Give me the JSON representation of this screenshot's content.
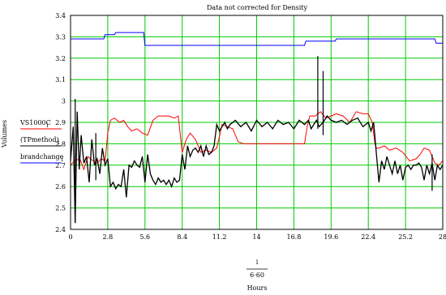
{
  "chart_data": {
    "type": "line",
    "title": "Data not corrected for Density",
    "ylabel": "Volumes",
    "xlabel_numerator": "i",
    "xlabel_denominator": "6·60",
    "xlabel": "Hours",
    "xlim": [
      0,
      28
    ],
    "ylim": [
      2.4,
      3.4
    ],
    "x_ticks": [
      "0",
      "2.8",
      "5.6",
      "8.4",
      "11.2",
      "14",
      "16.8",
      "19.6",
      "22.4",
      "25.2",
      "28"
    ],
    "y_ticks": [
      "2.4",
      "2.5",
      "2.6",
      "2.7",
      "2.8",
      "2.9",
      "3",
      "3.1",
      "3.2",
      "3.3",
      "3.4"
    ],
    "grid": true,
    "grid_color": "#00cc00",
    "legend": [
      {
        "label": "VS1000C",
        "subscript": "i",
        "color": "#ff0000"
      },
      {
        "label": "(TPmethod)",
        "subscript": "i",
        "color": "#000000"
      },
      {
        "label": "brandchange",
        "subscript": "i",
        "color": "#0000ff"
      }
    ],
    "series": [
      {
        "name": "VS1000C",
        "color": "#ff0000",
        "x": [
          0,
          0.3,
          0.7,
          1.0,
          1.3,
          1.7,
          2.0,
          2.3,
          2.6,
          2.8,
          3.0,
          3.3,
          3.7,
          4.0,
          4.3,
          4.6,
          5.0,
          5.4,
          5.8,
          6.2,
          6.6,
          7.0,
          7.4,
          7.8,
          8.1,
          8.4,
          8.7,
          9.0,
          9.4,
          9.8,
          10.2,
          10.6,
          11.0,
          11.4,
          11.8,
          12.2,
          12.6,
          13.0,
          14.0,
          15.0,
          16.0,
          17.0,
          17.6,
          17.8,
          18.0,
          18.4,
          18.8,
          19.2,
          19.6,
          20.0,
          20.5,
          21.0,
          21.5,
          22.0,
          22.4,
          22.7,
          22.9,
          23.0,
          23.2,
          23.6,
          24.0,
          24.5,
          25.0,
          25.5,
          26.0,
          26.3,
          26.6,
          27.0,
          27.4,
          27.7,
          28.0
        ],
        "values": [
          2.7,
          2.72,
          2.73,
          2.68,
          2.74,
          2.72,
          2.71,
          2.73,
          2.72,
          2.85,
          2.91,
          2.92,
          2.9,
          2.91,
          2.88,
          2.86,
          2.87,
          2.85,
          2.84,
          2.91,
          2.93,
          2.93,
          2.93,
          2.92,
          2.93,
          2.76,
          2.82,
          2.85,
          2.82,
          2.76,
          2.77,
          2.76,
          2.78,
          2.89,
          2.88,
          2.87,
          2.81,
          2.8,
          2.8,
          2.8,
          2.8,
          2.8,
          2.8,
          2.88,
          2.93,
          2.93,
          2.95,
          2.92,
          2.93,
          2.94,
          2.93,
          2.9,
          2.95,
          2.94,
          2.94,
          2.9,
          2.8,
          2.78,
          2.78,
          2.79,
          2.77,
          2.78,
          2.76,
          2.72,
          2.73,
          2.75,
          2.78,
          2.77,
          2.71,
          2.7,
          2.72
        ]
      },
      {
        "name": "(TPmethod)",
        "color": "#000000",
        "x": [
          0,
          0.2,
          0.35,
          0.5,
          0.65,
          0.8,
          1.0,
          1.2,
          1.4,
          1.6,
          1.8,
          2.0,
          2.2,
          2.4,
          2.6,
          2.8,
          3.0,
          3.2,
          3.4,
          3.6,
          3.8,
          4.0,
          4.2,
          4.4,
          4.6,
          4.8,
          5.0,
          5.2,
          5.4,
          5.6,
          5.8,
          6.0,
          6.2,
          6.4,
          6.6,
          6.8,
          7.0,
          7.2,
          7.4,
          7.6,
          7.8,
          8.0,
          8.2,
          8.4,
          8.6,
          8.8,
          9.0,
          9.2,
          9.4,
          9.6,
          9.8,
          10.0,
          10.2,
          10.4,
          10.6,
          10.8,
          11.0,
          11.2,
          11.4,
          11.6,
          11.8,
          12.0,
          12.4,
          12.8,
          13.2,
          13.6,
          14.0,
          14.4,
          14.8,
          15.2,
          15.6,
          16.0,
          16.4,
          16.8,
          17.2,
          17.6,
          17.9,
          18.1,
          18.3,
          18.5,
          18.7,
          19.0,
          19.3,
          19.6,
          20.0,
          20.4,
          20.8,
          21.2,
          21.6,
          22.0,
          22.4,
          22.6,
          22.8,
          23.0,
          23.2,
          23.4,
          23.6,
          23.8,
          24.0,
          24.2,
          24.4,
          24.6,
          24.8,
          25.0,
          25.2,
          25.4,
          25.6,
          25.8,
          26.0,
          26.2,
          26.4,
          26.6,
          26.8,
          27.0,
          27.2,
          27.4,
          27.6,
          27.8,
          28.0
        ],
        "values": [
          2.72,
          2.88,
          2.43,
          2.95,
          2.68,
          2.84,
          2.71,
          2.74,
          2.62,
          2.82,
          2.7,
          2.73,
          2.66,
          2.78,
          2.7,
          2.73,
          2.6,
          2.62,
          2.59,
          2.61,
          2.6,
          2.68,
          2.55,
          2.7,
          2.69,
          2.72,
          2.7,
          2.69,
          2.74,
          2.62,
          2.75,
          2.66,
          2.63,
          2.61,
          2.64,
          2.62,
          2.63,
          2.61,
          2.63,
          2.6,
          2.64,
          2.62,
          2.63,
          2.75,
          2.68,
          2.79,
          2.74,
          2.77,
          2.78,
          2.76,
          2.79,
          2.74,
          2.79,
          2.75,
          2.76,
          2.79,
          2.89,
          2.86,
          2.88,
          2.9,
          2.87,
          2.89,
          2.91,
          2.88,
          2.9,
          2.86,
          2.91,
          2.88,
          2.9,
          2.87,
          2.91,
          2.89,
          2.9,
          2.87,
          2.91,
          2.89,
          2.91,
          2.87,
          2.89,
          2.91,
          2.88,
          2.9,
          2.93,
          2.91,
          2.9,
          2.91,
          2.89,
          2.91,
          2.92,
          2.88,
          2.9,
          2.86,
          2.9,
          2.76,
          2.62,
          2.72,
          2.68,
          2.74,
          2.7,
          2.66,
          2.72,
          2.66,
          2.7,
          2.63,
          2.69,
          2.7,
          2.68,
          2.7,
          2.7,
          2.71,
          2.69,
          2.63,
          2.7,
          2.66,
          2.71,
          2.63,
          2.7,
          2.68,
          2.7
        ]
      },
      {
        "name": "brandchange",
        "color": "#0000ff",
        "x": [
          0,
          2.5,
          2.6,
          3.3,
          3.4,
          4.0,
          4.1,
          5.5,
          5.6,
          8.4,
          8.5,
          17.6,
          17.7,
          19.9,
          20.0,
          24.8,
          24.9,
          27.4,
          27.5,
          28.0
        ],
        "values": [
          3.29,
          3.29,
          3.31,
          3.31,
          3.32,
          3.32,
          3.32,
          3.32,
          3.26,
          3.26,
          3.26,
          3.26,
          3.28,
          3.28,
          3.29,
          3.29,
          3.29,
          3.29,
          3.27,
          3.27
        ],
        "step": true
      }
    ],
    "spikes": [
      {
        "x": 0.35,
        "low": 2.43,
        "high": 3.01
      },
      {
        "x": 1.9,
        "low": 2.63,
        "high": 2.85
      },
      {
        "x": 18.6,
        "low": 2.87,
        "high": 3.21
      },
      {
        "x": 19.0,
        "low": 2.84,
        "high": 3.14
      },
      {
        "x": 27.2,
        "low": 2.58,
        "high": 2.75
      }
    ]
  }
}
